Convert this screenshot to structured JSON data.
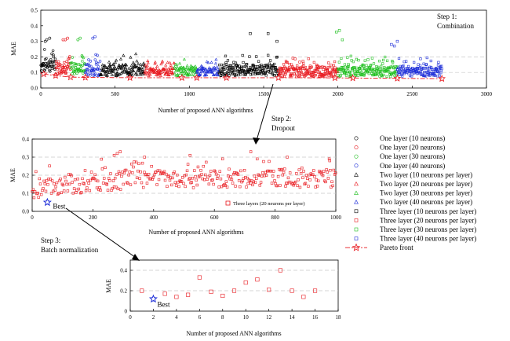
{
  "chart_data": [
    {
      "type": "scatter",
      "xlabel": "Number of proposed ANN algorithms",
      "ylabel": "MAE",
      "xlim": [
        0,
        3000
      ],
      "ylim": [
        0,
        0.5
      ],
      "xticks": [
        "0",
        "500",
        "1000",
        "1500",
        "2000",
        "2500",
        "3000"
      ],
      "yticks": [
        "0.0",
        "0.1",
        "0.2",
        "0.3",
        "0.4",
        "0.5"
      ],
      "grid_y": [
        0.1,
        0.2
      ],
      "annotation": [
        "Step 1:",
        "Combination"
      ],
      "segments": [
        {
          "series": "One layer (10 neurons)",
          "x": [
            1,
            100
          ],
          "base": 0.14,
          "spread": 0.06
        },
        {
          "series": "One layer (20 neurons)",
          "x": [
            100,
            200
          ],
          "base": 0.12,
          "spread": 0.05
        },
        {
          "series": "One layer (30 neurons)",
          "x": [
            200,
            300
          ],
          "base": 0.12,
          "spread": 0.05
        },
        {
          "series": "One layer (40 neurons)",
          "x": [
            300,
            400
          ],
          "base": 0.11,
          "spread": 0.05
        },
        {
          "series": "Two layer (10 neurons per layer)",
          "x": [
            400,
            700
          ],
          "base": 0.11,
          "spread": 0.05
        },
        {
          "series": "Two layer (20 neurons per layer)",
          "x": [
            700,
            900
          ],
          "base": 0.1,
          "spread": 0.035
        },
        {
          "series": "Two layer (30 neurons per layer)",
          "x": [
            900,
            1050
          ],
          "base": 0.1,
          "spread": 0.035
        },
        {
          "series": "Two layer (40 neurons per layer)",
          "x": [
            1050,
            1200
          ],
          "base": 0.1,
          "spread": 0.035
        },
        {
          "series": "Three layer (10 neurons per layer)",
          "x": [
            1200,
            1600
          ],
          "base": 0.11,
          "spread": 0.05
        },
        {
          "series": "Three layer (20 neurons per layer)",
          "x": [
            1600,
            2000
          ],
          "base": 0.1,
          "spread": 0.045
        },
        {
          "series": "Three layer (30 neurons per layer)",
          "x": [
            2000,
            2400
          ],
          "base": 0.1,
          "spread": 0.045
        },
        {
          "series": "Three layer (40 neurons per layer)",
          "x": [
            2400,
            2700
          ],
          "base": 0.1,
          "spread": 0.04
        }
      ],
      "outliers": [
        {
          "series": "One layer (10 neurons)",
          "x": [
            30,
            40,
            60,
            75,
            85
          ],
          "y": [
            0.3,
            0.31,
            0.32,
            0.22,
            0.2
          ]
        },
        {
          "series": "One layer (20 neurons)",
          "x": [
            150,
            165,
            180
          ],
          "y": [
            0.31,
            0.31,
            0.32
          ]
        },
        {
          "series": "One layer (30 neurons)",
          "x": [
            250,
            265,
            280
          ],
          "y": [
            0.31,
            0.32,
            0.2
          ]
        },
        {
          "series": "One layer (40 neurons)",
          "x": [
            350,
            365,
            380
          ],
          "y": [
            0.32,
            0.33,
            0.21
          ]
        },
        {
          "series": "Three layer (10 neurons per layer)",
          "x": [
            1410,
            1530,
            1590
          ],
          "y": [
            0.35,
            0.35,
            0.3
          ]
        },
        {
          "series": "Three layer (30 neurons per layer)",
          "x": [
            1990,
            2010,
            2030
          ],
          "y": [
            0.36,
            0.37,
            0.31
          ]
        },
        {
          "series": "Three layer (40 neurons per layer)",
          "x": [
            2360,
            2380,
            2400
          ],
          "y": [
            0.28,
            0.27,
            0.3
          ]
        }
      ],
      "pareto": {
        "series": "Pareto front",
        "x": [
          20,
          100,
          200,
          300,
          600,
          950,
          1050,
          1250,
          1600,
          1980,
          2100,
          2400,
          2700
        ],
        "y": [
          0.09,
          0.08,
          0.07,
          0.068,
          0.066,
          0.066,
          0.066,
          0.066,
          0.066,
          0.065,
          0.064,
          0.062,
          0.06
        ]
      }
    },
    {
      "type": "scatter",
      "xlabel": "Number of proposed ANN algorithms",
      "ylabel": "MAE",
      "xlim": [
        0,
        1000
      ],
      "ylim": [
        0,
        0.4
      ],
      "xticks": [
        "0",
        "200",
        "400",
        "600",
        "800",
        "1000"
      ],
      "yticks": [
        "0.0",
        "0.1",
        "0.2",
        "0.3",
        "0.4"
      ],
      "grid_y": [
        0.1,
        0.2,
        0.3
      ],
      "series_name": "Three layers (20 neurons per layer)",
      "generated": {
        "n": 1000,
        "xmax": 1000,
        "base_start": 0.12,
        "base_end": 0.18,
        "spread": 0.05
      },
      "outliers": {
        "x": [
          270,
          280,
          290,
          370,
          520,
          720,
          840,
          980
        ],
        "y": [
          0.31,
          0.32,
          0.33,
          0.3,
          0.31,
          0.33,
          0.3,
          0.28
        ]
      },
      "best": {
        "x": 50,
        "y": 0.05,
        "label": "Best"
      }
    },
    {
      "type": "scatter",
      "xlabel": "Number of proposed ANN algorithms",
      "ylabel": "MAE",
      "xlim": [
        0,
        18
      ],
      "ylim": [
        0,
        0.5
      ],
      "xticks": [
        "0",
        "2",
        "4",
        "6",
        "8",
        "10",
        "12",
        "14",
        "16",
        "18"
      ],
      "yticks": [
        "0",
        "0.2",
        "0.4"
      ],
      "grid_y": [
        0.2,
        0.4
      ],
      "x": [
        1,
        3,
        4,
        5,
        6,
        7,
        8,
        9,
        10,
        11,
        12,
        13,
        14,
        15,
        16
      ],
      "y": [
        0.2,
        0.17,
        0.14,
        0.16,
        0.33,
        0.19,
        0.15,
        0.2,
        0.28,
        0.31,
        0.21,
        0.4,
        0.2,
        0.14,
        0.2
      ],
      "best": {
        "x": 2,
        "y": 0.12,
        "label": "Best"
      }
    }
  ],
  "steps": {
    "step2_line1": "Step 2:",
    "step2_line2": "Dropout",
    "step3_line1": "Step 3:",
    "step3_line2": "Batch normalization"
  },
  "legend": [
    {
      "label": "One layer (10 neurons)",
      "color": "#000000",
      "marker": "circle"
    },
    {
      "label": "One layer (20 neurons)",
      "color": "#e8161c",
      "marker": "circle"
    },
    {
      "label": "One layer (30 neurons)",
      "color": "#1fbf1f",
      "marker": "circle"
    },
    {
      "label": "One layer (40 neurons)",
      "color": "#1f2fd8",
      "marker": "circle"
    },
    {
      "label": "Two layer (10 neurons per layer)",
      "color": "#000000",
      "marker": "triangle"
    },
    {
      "label": "Two layer (20 neurons per layer)",
      "color": "#e8161c",
      "marker": "triangle"
    },
    {
      "label": "Two layer (30 neurons per layer)",
      "color": "#1fbf1f",
      "marker": "triangle"
    },
    {
      "label": "Two layer (40 neurons per layer)",
      "color": "#1f2fd8",
      "marker": "triangle"
    },
    {
      "label": "Three layer (10 neurons per layer)",
      "color": "#000000",
      "marker": "square"
    },
    {
      "label": "Three layer (20 neurons per layer)",
      "color": "#e8161c",
      "marker": "square"
    },
    {
      "label": "Three layer (30 neurons per layer)",
      "color": "#1fbf1f",
      "marker": "square"
    },
    {
      "label": "Three layer (40 neurons per layer)",
      "color": "#1f2fd8",
      "marker": "square"
    },
    {
      "label": "Pareto front",
      "color": "#e8161c",
      "marker": "star-line"
    }
  ]
}
